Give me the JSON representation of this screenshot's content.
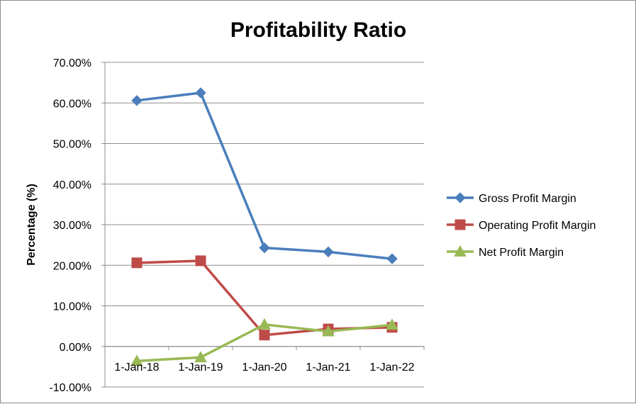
{
  "chart_data": {
    "type": "line",
    "title": "Profitability Ratio",
    "xlabel": "",
    "ylabel": "Percentage (%)",
    "categories": [
      "1-Jan-18",
      "1-Jan-19",
      "1-Jan-20",
      "1-Jan-21",
      "1-Jan-22"
    ],
    "ylim": [
      -10,
      70
    ],
    "ytick_step": 10,
    "ytick_labels": [
      "-10.00%",
      "0.00%",
      "10.00%",
      "20.00%",
      "30.00%",
      "40.00%",
      "50.00%",
      "60.00%",
      "70.00%"
    ],
    "grid": true,
    "legend_position": "right",
    "series": [
      {
        "name": "Gross Profit Margin",
        "marker": "diamond",
        "color": "#4a7ebb",
        "values": [
          60.6,
          62.5,
          24.3,
          23.3,
          21.6
        ]
      },
      {
        "name": "Operating Profit Margin",
        "marker": "square",
        "color": "#be4b48",
        "values": [
          20.6,
          21.1,
          2.8,
          4.3,
          4.7
        ]
      },
      {
        "name": "Net Profit Margin",
        "marker": "triangle",
        "color": "#98b954",
        "values": [
          -3.6,
          -2.7,
          5.4,
          3.7,
          5.3
        ]
      }
    ]
  }
}
